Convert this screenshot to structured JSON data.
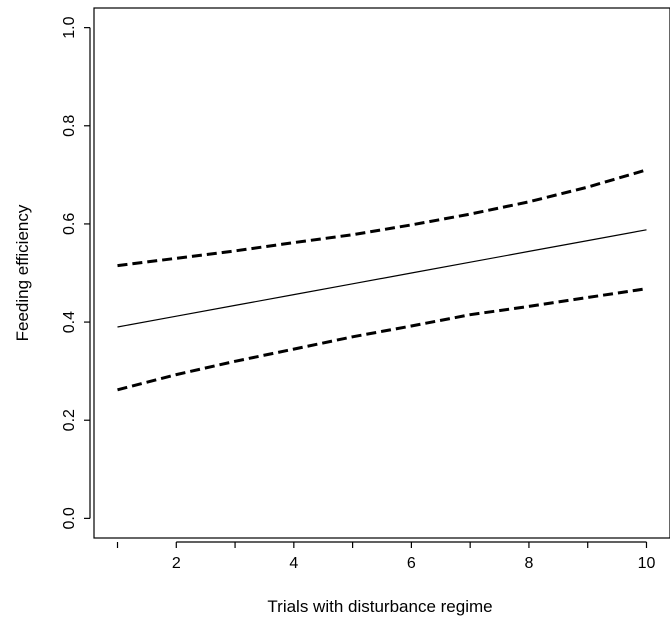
{
  "chart_data": {
    "type": "line",
    "title": "",
    "xlabel": "Trials with disturbance regime",
    "ylabel": "Feeding efficiency",
    "xlim": [
      0.6,
      10.4
    ],
    "ylim": [
      -0.04,
      1.04
    ],
    "x_ticks": [
      2,
      4,
      6,
      8,
      10
    ],
    "x_tick_labels": [
      "2",
      "4",
      "6",
      "8",
      "10"
    ],
    "y_ticks": [
      0.0,
      0.2,
      0.4,
      0.6,
      0.8,
      1.0
    ],
    "y_tick_labels": [
      "0.0",
      "0.2",
      "0.4",
      "0.6",
      "0.8",
      "1.0"
    ],
    "grid": false,
    "legend": "none",
    "series": [
      {
        "style": "solid",
        "x": [
          1,
          2,
          3,
          4,
          5,
          6,
          7,
          8,
          9,
          10
        ],
        "y": [
          0.39,
          0.412,
          0.434,
          0.456,
          0.478,
          0.5,
          0.522,
          0.544,
          0.566,
          0.588
        ]
      },
      {
        "style": "dashed",
        "x": [
          1,
          2,
          3,
          4,
          5,
          6,
          7,
          8,
          9,
          10
        ],
        "y": [
          0.515,
          0.53,
          0.545,
          0.562,
          0.578,
          0.598,
          0.62,
          0.645,
          0.675,
          0.71
        ]
      },
      {
        "style": "dashed",
        "x": [
          1,
          2,
          3,
          4,
          5,
          6,
          7,
          8,
          9,
          10
        ],
        "y": [
          0.262,
          0.293,
          0.32,
          0.345,
          0.37,
          0.392,
          0.415,
          0.432,
          0.45,
          0.468
        ]
      }
    ]
  }
}
